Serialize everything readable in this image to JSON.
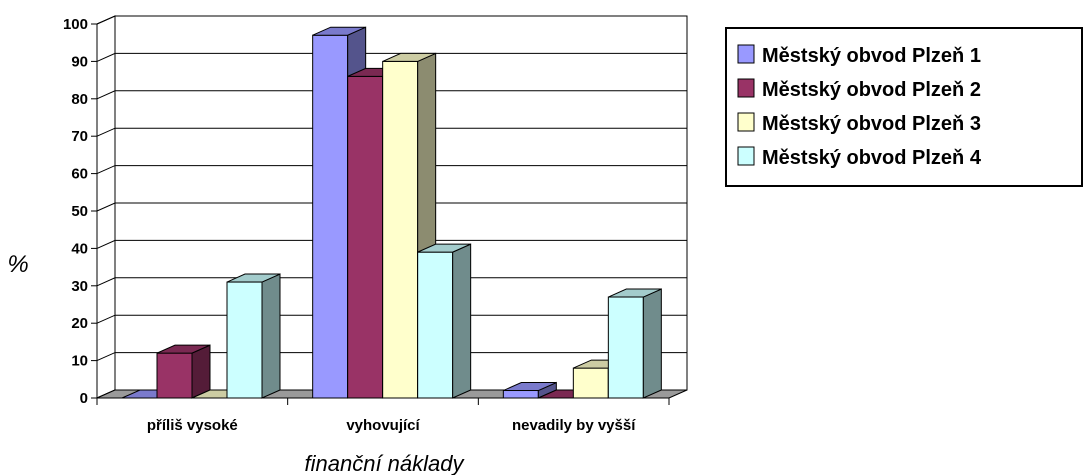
{
  "chart_data": {
    "type": "bar",
    "title": "",
    "xlabel": "finanční náklady",
    "ylabel": "%",
    "ylim": [
      0,
      100
    ],
    "yticks": [
      0,
      10,
      20,
      30,
      40,
      50,
      60,
      70,
      80,
      90,
      100
    ],
    "grid": true,
    "legend_position": "top-right",
    "categories": [
      "příliš vysoké",
      "vyhovující",
      "nevadily by vyšší"
    ],
    "series": [
      {
        "name": "Městský obvod Plzeň 1",
        "color": "#9999ff",
        "values": [
          0,
          97,
          2
        ]
      },
      {
        "name": "Městský obvod Plzeň 2",
        "color": "#993366",
        "values": [
          12,
          86,
          0
        ]
      },
      {
        "name": "Městský obvod Plzeň 3",
        "color": "#ffffcc",
        "values": [
          0,
          90,
          8
        ]
      },
      {
        "name": "Městský obvod Plzeň 4",
        "color": "#ccffff",
        "values": [
          31,
          39,
          27
        ]
      }
    ]
  }
}
